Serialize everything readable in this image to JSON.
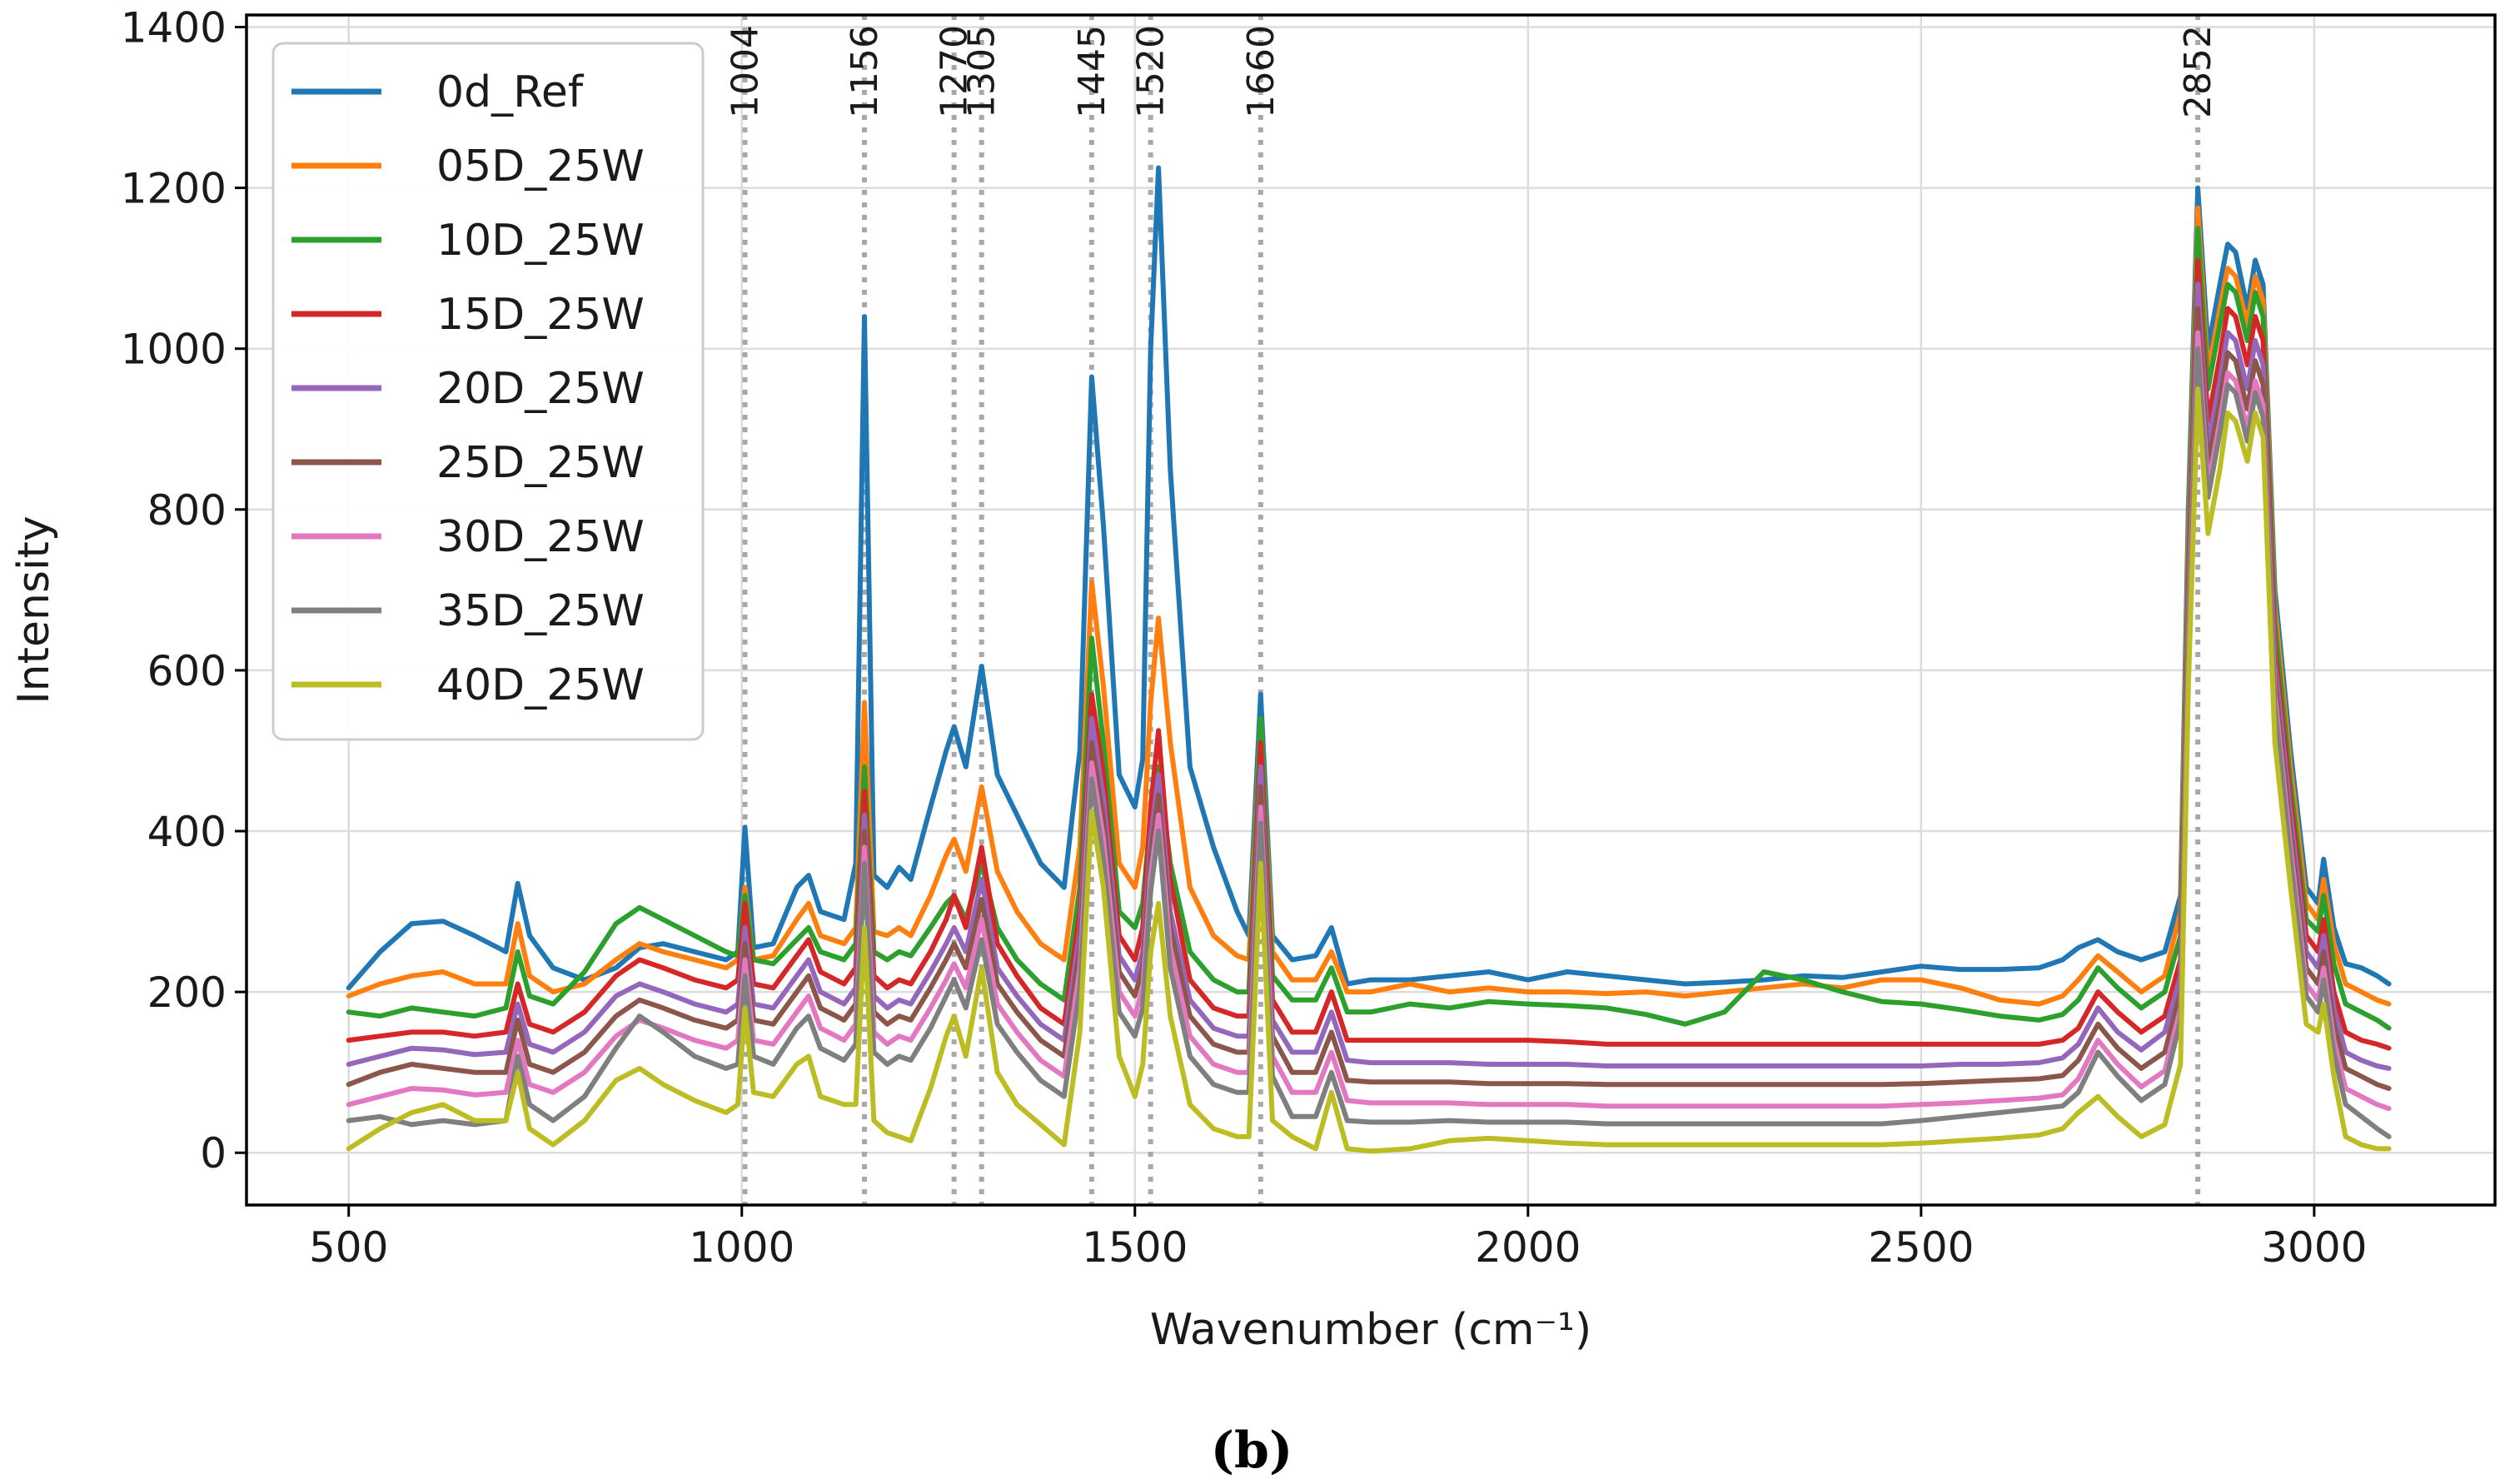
{
  "chart_data": {
    "type": "line",
    "xlabel": "Wavenumber (cm⁻¹)",
    "ylabel": "Intensity",
    "xlim": [
      370,
      3230
    ],
    "ylim": [
      -65,
      1415
    ],
    "xticks": [
      500,
      1000,
      1500,
      2000,
      2500,
      3000
    ],
    "yticks": [
      0,
      200,
      400,
      600,
      800,
      1000,
      1200,
      1400
    ],
    "grid": true,
    "legend_position": "top-left",
    "peak_markers": [
      1004,
      1156,
      1270,
      1305,
      1445,
      1520,
      1660,
      2852
    ],
    "caption": "(b)",
    "x": [
      500,
      540,
      580,
      620,
      660,
      700,
      715,
      730,
      760,
      800,
      840,
      870,
      900,
      940,
      980,
      995,
      1004,
      1015,
      1040,
      1070,
      1085,
      1100,
      1130,
      1145,
      1156,
      1168,
      1185,
      1200,
      1215,
      1240,
      1260,
      1270,
      1285,
      1305,
      1325,
      1350,
      1380,
      1410,
      1430,
      1445,
      1460,
      1480,
      1500,
      1510,
      1520,
      1530,
      1545,
      1570,
      1600,
      1630,
      1645,
      1660,
      1675,
      1700,
      1730,
      1750,
      1770,
      1800,
      1850,
      1900,
      1950,
      2000,
      2050,
      2100,
      2150,
      2200,
      2250,
      2300,
      2350,
      2400,
      2450,
      2500,
      2550,
      2600,
      2650,
      2680,
      2700,
      2725,
      2750,
      2780,
      2810,
      2830,
      2840,
      2852,
      2865,
      2880,
      2890,
      2900,
      2915,
      2925,
      2935,
      2950,
      2970,
      2990,
      3005,
      3012,
      3025,
      3040,
      3060,
      3080,
      3095
    ],
    "series": [
      {
        "name": "0d_Ref",
        "color": "#1f77b4",
        "values": [
          205,
          250,
          285,
          288,
          270,
          250,
          335,
          270,
          230,
          215,
          230,
          255,
          260,
          250,
          240,
          250,
          405,
          255,
          260,
          330,
          345,
          300,
          290,
          360,
          1040,
          345,
          330,
          355,
          340,
          430,
          500,
          530,
          480,
          605,
          470,
          420,
          360,
          330,
          500,
          965,
          780,
          470,
          430,
          490,
          1000,
          1225,
          850,
          480,
          380,
          300,
          270,
          570,
          270,
          240,
          245,
          280,
          210,
          215,
          215,
          220,
          225,
          215,
          225,
          220,
          215,
          210,
          212,
          215,
          220,
          218,
          225,
          232,
          228,
          228,
          230,
          240,
          255,
          265,
          250,
          240,
          250,
          320,
          800,
          1200,
          1000,
          1080,
          1130,
          1120,
          1050,
          1110,
          1080,
          700,
          500,
          330,
          310,
          365,
          280,
          235,
          230,
          220,
          210
        ]
      },
      {
        "name": "05D_25W",
        "color": "#ff7f0e",
        "values": [
          195,
          210,
          220,
          225,
          210,
          210,
          285,
          220,
          200,
          210,
          240,
          260,
          250,
          240,
          230,
          240,
          330,
          240,
          245,
          290,
          310,
          270,
          260,
          280,
          560,
          275,
          270,
          280,
          270,
          320,
          370,
          390,
          350,
          455,
          350,
          300,
          260,
          240,
          380,
          710,
          580,
          360,
          330,
          380,
          560,
          665,
          510,
          330,
          270,
          245,
          240,
          540,
          250,
          215,
          215,
          250,
          200,
          200,
          210,
          200,
          205,
          200,
          200,
          198,
          200,
          195,
          200,
          205,
          210,
          205,
          215,
          215,
          205,
          190,
          185,
          195,
          215,
          245,
          225,
          200,
          220,
          300,
          760,
          1175,
          970,
          1050,
          1100,
          1090,
          1030,
          1090,
          1060,
          680,
          480,
          310,
          290,
          340,
          260,
          210,
          200,
          190,
          185
        ]
      },
      {
        "name": "10D_25W",
        "color": "#2ca02c",
        "values": [
          175,
          170,
          180,
          175,
          170,
          180,
          250,
          195,
          185,
          225,
          285,
          305,
          290,
          270,
          250,
          245,
          320,
          240,
          235,
          265,
          280,
          250,
          240,
          260,
          480,
          250,
          240,
          250,
          245,
          280,
          310,
          320,
          290,
          360,
          280,
          240,
          210,
          190,
          330,
          640,
          510,
          300,
          280,
          310,
          420,
          480,
          360,
          250,
          215,
          200,
          200,
          540,
          220,
          190,
          190,
          230,
          175,
          175,
          185,
          180,
          188,
          185,
          183,
          180,
          172,
          160,
          175,
          225,
          215,
          200,
          188,
          185,
          178,
          170,
          165,
          172,
          190,
          230,
          205,
          180,
          200,
          270,
          730,
          1150,
          950,
          1030,
          1080,
          1070,
          1010,
          1070,
          1040,
          660,
          460,
          290,
          275,
          320,
          235,
          185,
          175,
          165,
          155
        ]
      },
      {
        "name": "15D_25W",
        "color": "#d62728",
        "values": [
          140,
          145,
          150,
          150,
          145,
          150,
          210,
          160,
          150,
          175,
          220,
          240,
          230,
          215,
          205,
          215,
          310,
          210,
          205,
          245,
          265,
          225,
          210,
          230,
          450,
          220,
          205,
          215,
          210,
          250,
          290,
          320,
          280,
          380,
          260,
          220,
          180,
          160,
          300,
          570,
          470,
          270,
          240,
          280,
          430,
          525,
          340,
          215,
          180,
          170,
          170,
          510,
          190,
          150,
          150,
          200,
          140,
          140,
          140,
          140,
          140,
          140,
          138,
          135,
          135,
          135,
          135,
          135,
          135,
          135,
          135,
          135,
          135,
          135,
          135,
          140,
          155,
          200,
          175,
          150,
          170,
          240,
          700,
          1110,
          910,
          990,
          1050,
          1040,
          980,
          1040,
          1010,
          630,
          440,
          270,
          250,
          290,
          200,
          150,
          140,
          135,
          130
        ]
      },
      {
        "name": "20D_25W",
        "color": "#9467bd",
        "values": [
          110,
          120,
          130,
          128,
          122,
          125,
          185,
          135,
          125,
          150,
          195,
          210,
          200,
          185,
          175,
          185,
          280,
          185,
          180,
          220,
          240,
          200,
          185,
          205,
          420,
          195,
          180,
          190,
          185,
          225,
          260,
          280,
          250,
          340,
          230,
          195,
          160,
          140,
          275,
          540,
          440,
          245,
          215,
          250,
          390,
          470,
          300,
          190,
          155,
          145,
          145,
          480,
          165,
          125,
          125,
          175,
          115,
          112,
          112,
          112,
          110,
          110,
          110,
          108,
          108,
          108,
          108,
          108,
          108,
          108,
          108,
          108,
          110,
          110,
          112,
          118,
          135,
          180,
          150,
          128,
          150,
          220,
          680,
          1080,
          880,
          960,
          1020,
          1010,
          950,
          1010,
          980,
          610,
          420,
          250,
          230,
          270,
          180,
          125,
          115,
          108,
          105
        ]
      },
      {
        "name": "25D_25W",
        "color": "#8c564b",
        "values": [
          85,
          100,
          110,
          105,
          100,
          100,
          165,
          110,
          100,
          125,
          170,
          190,
          180,
          165,
          155,
          165,
          260,
          165,
          160,
          200,
          220,
          180,
          165,
          185,
          400,
          175,
          160,
          170,
          165,
          205,
          240,
          260,
          230,
          315,
          210,
          175,
          140,
          120,
          255,
          510,
          415,
          225,
          195,
          230,
          370,
          445,
          280,
          170,
          135,
          125,
          125,
          455,
          145,
          100,
          100,
          150,
          90,
          88,
          88,
          88,
          86,
          86,
          86,
          85,
          85,
          85,
          85,
          85,
          85,
          85,
          85,
          86,
          88,
          90,
          92,
          96,
          115,
          160,
          130,
          105,
          125,
          200,
          660,
          1050,
          855,
          935,
          995,
          985,
          925,
          985,
          955,
          590,
          400,
          230,
          210,
          250,
          160,
          105,
          95,
          85,
          80
        ]
      },
      {
        "name": "30D_25W",
        "color": "#e377c2",
        "values": [
          60,
          70,
          80,
          78,
          72,
          75,
          140,
          85,
          75,
          100,
          145,
          165,
          155,
          140,
          130,
          140,
          240,
          140,
          135,
          175,
          195,
          155,
          140,
          160,
          380,
          150,
          135,
          145,
          140,
          180,
          215,
          235,
          205,
          290,
          185,
          150,
          115,
          95,
          230,
          485,
          390,
          200,
          170,
          205,
          345,
          420,
          255,
          145,
          110,
          100,
          100,
          430,
          120,
          75,
          75,
          125,
          65,
          62,
          62,
          62,
          60,
          60,
          60,
          58,
          58,
          58,
          58,
          58,
          58,
          58,
          58,
          60,
          62,
          65,
          68,
          72,
          92,
          140,
          110,
          82,
          102,
          180,
          640,
          1020,
          830,
          910,
          970,
          960,
          900,
          960,
          930,
          570,
          380,
          210,
          190,
          230,
          140,
          80,
          70,
          60,
          55
        ]
      },
      {
        "name": "35D_25W",
        "color": "#7f7f7f",
        "values": [
          40,
          45,
          35,
          40,
          35,
          40,
          120,
          60,
          40,
          70,
          130,
          170,
          150,
          120,
          105,
          110,
          220,
          120,
          110,
          155,
          170,
          130,
          115,
          135,
          360,
          125,
          110,
          120,
          115,
          155,
          195,
          215,
          180,
          265,
          160,
          125,
          90,
          70,
          205,
          465,
          365,
          175,
          145,
          180,
          325,
          400,
          230,
          120,
          85,
          75,
          75,
          410,
          95,
          45,
          45,
          100,
          40,
          38,
          38,
          40,
          38,
          38,
          38,
          36,
          36,
          36,
          36,
          36,
          36,
          36,
          36,
          40,
          45,
          50,
          55,
          58,
          75,
          125,
          95,
          65,
          85,
          165,
          625,
          1000,
          815,
          895,
          955,
          945,
          885,
          945,
          915,
          555,
          365,
          195,
          175,
          215,
          125,
          60,
          45,
          30,
          20
        ]
      },
      {
        "name": "40D_25W",
        "color": "#bcbd22",
        "values": [
          5,
          30,
          50,
          60,
          40,
          40,
          100,
          30,
          10,
          40,
          90,
          105,
          85,
          65,
          50,
          60,
          180,
          75,
          70,
          110,
          120,
          70,
          60,
          60,
          280,
          40,
          25,
          20,
          15,
          80,
          145,
          170,
          120,
          230,
          100,
          60,
          35,
          10,
          150,
          425,
          330,
          120,
          70,
          110,
          250,
          310,
          170,
          60,
          30,
          20,
          20,
          360,
          40,
          20,
          5,
          75,
          5,
          2,
          5,
          15,
          18,
          15,
          12,
          10,
          10,
          10,
          10,
          10,
          10,
          10,
          10,
          12,
          15,
          18,
          22,
          30,
          50,
          70,
          45,
          20,
          35,
          110,
          580,
          950,
          770,
          850,
          920,
          910,
          860,
          920,
          890,
          510,
          330,
          160,
          150,
          185,
          95,
          20,
          10,
          5,
          5
        ]
      }
    ]
  }
}
